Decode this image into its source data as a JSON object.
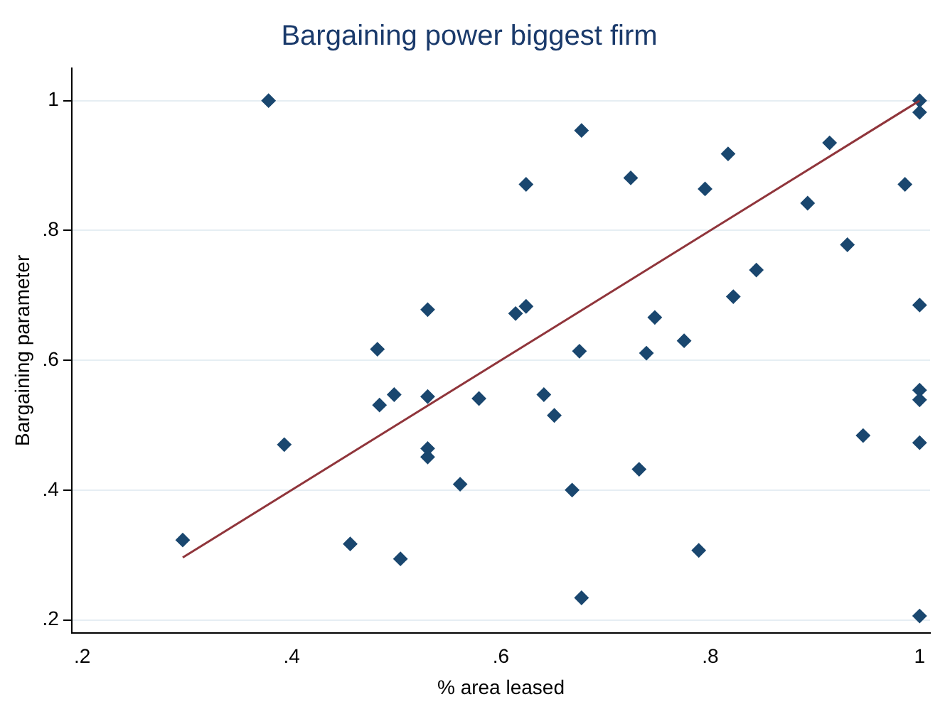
{
  "chart_data": {
    "type": "scatter",
    "title": "Bargaining power biggest firm",
    "xlabel": "% area leased",
    "ylabel": "Bargaining parameter",
    "xlim": [
      0.19,
      1.01
    ],
    "ylim": [
      0.18,
      1.05
    ],
    "xticks": [
      {
        "value": 0.2,
        "label": ".2"
      },
      {
        "value": 0.4,
        "label": ".4"
      },
      {
        "value": 0.6,
        "label": ".6"
      },
      {
        "value": 0.8,
        "label": ".8"
      },
      {
        "value": 1,
        "label": "1"
      }
    ],
    "yticks": [
      {
        "value": 0.2,
        "label": ".2"
      },
      {
        "value": 0.4,
        "label": ".4"
      },
      {
        "value": 0.6,
        "label": ".6"
      },
      {
        "value": 0.8,
        "label": ".8"
      },
      {
        "value": 1,
        "label": "1"
      }
    ],
    "grid": "y",
    "legend": false,
    "series": [
      {
        "color": "#1a476f",
        "marker": "diamond",
        "x": [
          0.378,
          0.296,
          0.393,
          0.456,
          0.504,
          0.482,
          0.484,
          0.498,
          0.53,
          0.53,
          0.53,
          0.53,
          0.561,
          0.579,
          0.614,
          0.624,
          0.624,
          0.677,
          0.641,
          0.651,
          0.675,
          0.668,
          0.677,
          0.724,
          0.739,
          0.747,
          0.732,
          0.775,
          0.789,
          0.795,
          0.817,
          0.822,
          0.844,
          0.893,
          0.914,
          0.931,
          0.946,
          0.986,
          1,
          1,
          1,
          1,
          1,
          1,
          1
        ],
        "values": [
          1.0,
          0.323,
          0.47,
          0.317,
          0.294,
          0.617,
          0.531,
          0.547,
          0.678,
          0.544,
          0.464,
          0.451,
          0.409,
          0.541,
          0.672,
          0.683,
          0.871,
          0.954,
          0.547,
          0.515,
          0.614,
          0.4,
          0.234,
          0.881,
          0.611,
          0.666,
          0.432,
          0.63,
          0.307,
          0.864,
          0.918,
          0.698,
          0.739,
          0.842,
          0.935,
          0.778,
          0.484,
          0.871,
          1.0,
          0.982,
          0.685,
          0.554,
          0.539,
          0.473,
          0.206
        ]
      },
      {
        "type": "line",
        "marker": "none",
        "color": "#90353b",
        "x": [
          0.296,
          1
        ],
        "values": [
          0.296,
          1
        ]
      }
    ]
  }
}
